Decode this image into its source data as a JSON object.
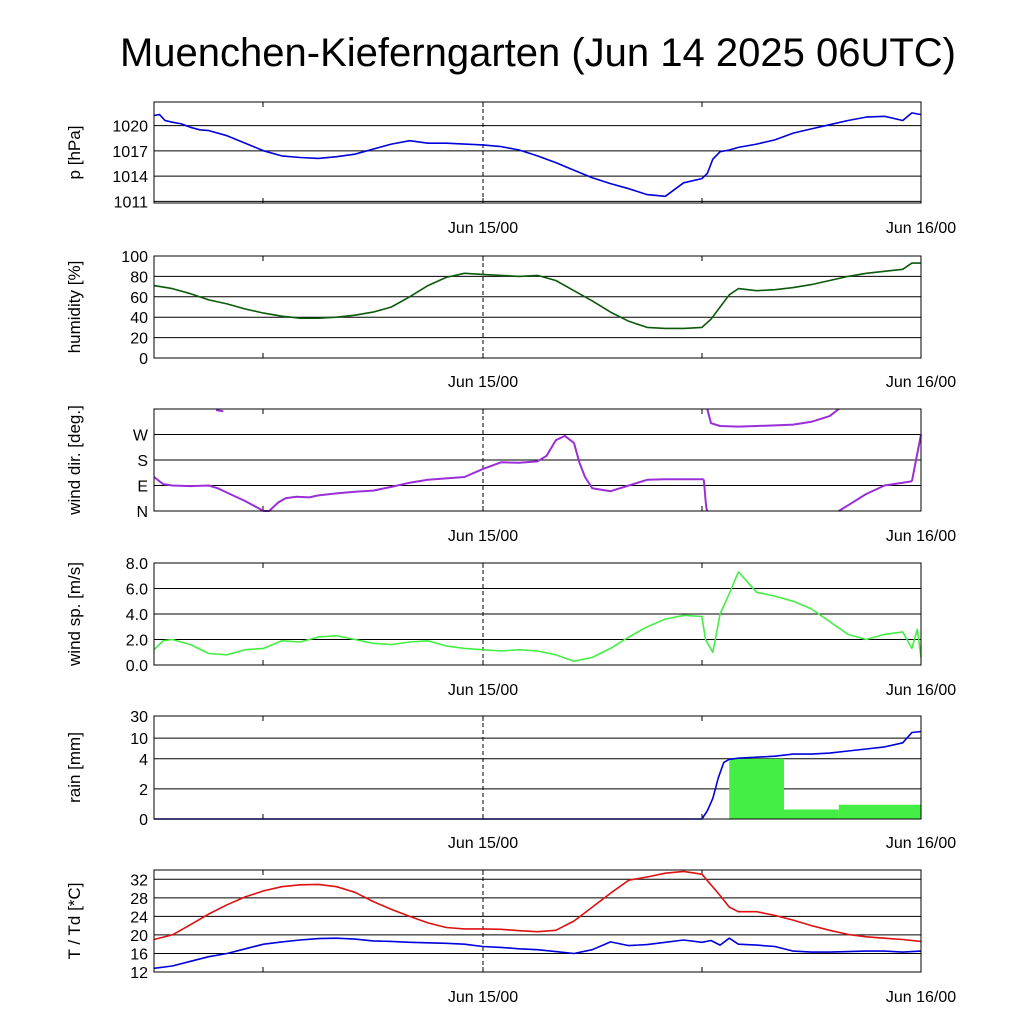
{
  "title": "Muenchen-Kieferngarten (Jun 14 2025 06UTC)",
  "x_tick_labels": [
    "Jun 15/00",
    "Jun 16/00"
  ],
  "colors": {
    "pressure": "#0000dd",
    "humidity": "#0a5a0a",
    "wind_dir": "#9a2fd8",
    "wind_speed": "#44ee44",
    "rain_bar": "#44ee44",
    "rain_cum": "#0000dd",
    "temperature": "#dd1111",
    "dewpoint": "#0000dd",
    "grid": "#000000"
  },
  "chart_data": [
    {
      "type": "line",
      "name": "pressure",
      "ylabel": "p [hPa]",
      "ylim": [
        1010.8,
        1022.8
      ],
      "yticks": [
        1011,
        1014,
        1017,
        1020
      ],
      "ytick_labels": [
        "1011",
        "1014",
        "1017",
        "1020"
      ],
      "x_range_hours": [
        0,
        42
      ],
      "series": [
        {
          "name": "",
          "color_key": "pressure",
          "x": [
            0,
            0.3,
            0.6,
            1,
            1.5,
            2,
            2.5,
            3,
            4,
            5,
            6,
            7,
            8,
            9,
            10,
            11,
            12,
            13,
            14,
            15,
            16,
            17,
            18,
            19,
            20,
            21,
            22,
            23,
            24,
            25,
            26,
            27,
            28,
            29,
            30,
            30.3,
            30.6,
            31,
            31.5,
            32,
            33,
            34,
            35,
            36,
            37,
            38,
            39,
            40,
            41,
            41.5,
            42
          ],
          "y": [
            1021.2,
            1021.3,
            1020.6,
            1020.4,
            1020.2,
            1019.8,
            1019.5,
            1019.4,
            1018.8,
            1017.9,
            1017.0,
            1016.4,
            1016.2,
            1016.1,
            1016.3,
            1016.6,
            1017.2,
            1017.8,
            1018.2,
            1017.9,
            1017.9,
            1017.8,
            1017.7,
            1017.5,
            1017.1,
            1016.4,
            1015.6,
            1014.7,
            1013.8,
            1013.1,
            1012.5,
            1011.8,
            1011.6,
            1013.2,
            1013.7,
            1014.3,
            1016.0,
            1016.9,
            1017.1,
            1017.4,
            1017.8,
            1018.3,
            1019.1,
            1019.6,
            1020.1,
            1020.6,
            1021.0,
            1021.1,
            1020.6,
            1021.5,
            1021.3
          ]
        }
      ]
    },
    {
      "type": "line",
      "name": "humidity",
      "ylabel": "humidity [%]",
      "ylim": [
        0,
        100
      ],
      "yticks": [
        0,
        20,
        40,
        60,
        80,
        100
      ],
      "ytick_labels": [
        "0",
        "20",
        "40",
        "60",
        "80",
        "100"
      ],
      "x_range_hours": [
        0,
        42
      ],
      "series": [
        {
          "name": "",
          "color_key": "humidity",
          "x": [
            0,
            1,
            2,
            3,
            4,
            5,
            6,
            7,
            8,
            9,
            10,
            11,
            12,
            13,
            14,
            15,
            16,
            17,
            18,
            19,
            20,
            21,
            22,
            23,
            24,
            25,
            26,
            27,
            28,
            29,
            30,
            30.5,
            31,
            31.5,
            32,
            33,
            34,
            35,
            36,
            37,
            38,
            39,
            40,
            41,
            41.5,
            42
          ],
          "y": [
            71,
            68,
            63,
            57,
            53,
            48,
            44,
            41,
            39,
            39,
            40,
            42,
            45,
            50,
            60,
            71,
            79,
            83,
            82,
            81,
            80,
            81,
            76,
            66,
            56,
            45,
            36,
            30,
            29,
            29,
            30,
            38,
            50,
            62,
            68,
            66,
            67,
            69,
            72,
            76,
            80,
            83,
            85,
            87,
            93,
            93
          ]
        }
      ]
    },
    {
      "type": "scatter",
      "name": "wind_direction",
      "ylabel": "wind dir. [deg.]",
      "ylim": [
        0,
        360
      ],
      "yticks": [
        0,
        90,
        180,
        270
      ],
      "ytick_labels": [
        "N",
        "E",
        "S",
        "W"
      ],
      "x_range_hours": [
        0,
        42
      ],
      "series": [
        {
          "name": "",
          "color_key": "wind_dir",
          "segments": [
            {
              "x": [
                3.4,
                3.8
              ],
              "y": [
                356,
                352
              ]
            },
            {
              "x": [
                0,
                0.5,
                1,
                2,
                3,
                3.5,
                4,
                5,
                6,
                6.3,
                6.8,
                7.2,
                7.8,
                8.5,
                9,
                10,
                11,
                12,
                13,
                14,
                15,
                16,
                17,
                18,
                19,
                20,
                21,
                21.5,
                22,
                22.5,
                23,
                23.3,
                23.6,
                24,
                25,
                26,
                27,
                28,
                29,
                30,
                30.1
              ],
              "y": [
                120,
                95,
                90,
                88,
                90,
                80,
                65,
                35,
                0,
                0,
                30,
                45,
                50,
                48,
                55,
                62,
                68,
                72,
                85,
                100,
                110,
                115,
                120,
                148,
                172,
                170,
                175,
                195,
                250,
                265,
                240,
                170,
                120,
                80,
                70,
                90,
                110,
                112,
                112,
                112,
                112
              ]
            },
            {
              "x": [
                30.1,
                30.15,
                30.2,
                30.25,
                30.3
              ],
              "y": [
                112,
                80,
                40,
                10,
                0
              ]
            },
            {
              "x": [
                30.3,
                30.5,
                31,
                32,
                33,
                34,
                35,
                36,
                37,
                37.5
              ],
              "y": [
                360,
                310,
                300,
                298,
                300,
                302,
                305,
                315,
                335,
                360
              ]
            },
            {
              "x": [
                37.5,
                38,
                39,
                40,
                41,
                41.5
              ],
              "y": [
                0,
                20,
                60,
                90,
                100,
                105
              ]
            },
            {
              "x": [
                41.5,
                41.7,
                42
              ],
              "y": [
                105,
                170,
                270
              ]
            }
          ]
        }
      ]
    },
    {
      "type": "line",
      "name": "wind_speed",
      "ylabel": "wind sp. [m/s]",
      "ylim": [
        0,
        8
      ],
      "yticks": [
        0,
        2,
        4,
        6,
        8
      ],
      "ytick_labels": [
        "0.0",
        "2.0",
        "4.0",
        "6.0",
        "8.0"
      ],
      "x_range_hours": [
        0,
        42
      ],
      "series": [
        {
          "name": "",
          "color_key": "wind_speed",
          "x": [
            0,
            0.5,
            1,
            2,
            3,
            4,
            5,
            6,
            7,
            8,
            9,
            10,
            11,
            12,
            13,
            14,
            15,
            16,
            17,
            18,
            19,
            20,
            21,
            22,
            23,
            24,
            25,
            26,
            27,
            28,
            29,
            30,
            30.2,
            30.6,
            31,
            31.5,
            32,
            33,
            34,
            35,
            36,
            37,
            38,
            39,
            40,
            41,
            41.5,
            41.8,
            42
          ],
          "y": [
            1.2,
            1.9,
            2.0,
            1.6,
            0.9,
            0.8,
            1.2,
            1.3,
            1.9,
            1.8,
            2.2,
            2.3,
            2.0,
            1.7,
            1.6,
            1.8,
            1.9,
            1.5,
            1.3,
            1.2,
            1.1,
            1.2,
            1.1,
            0.8,
            0.3,
            0.6,
            1.3,
            2.2,
            3.0,
            3.6,
            3.9,
            3.8,
            2.0,
            1.0,
            4.0,
            5.6,
            7.3,
            5.7,
            5.4,
            5.0,
            4.4,
            3.4,
            2.4,
            2.0,
            2.4,
            2.6,
            1.3,
            2.8,
            0.6
          ]
        }
      ]
    },
    {
      "type": "bar+line",
      "name": "rain",
      "ylabel": "rain [mm]",
      "yticks_pos": [
        0,
        0.2,
        0.4,
        0.6,
        0.8,
        1.0
      ],
      "ytick_labels": [
        "0",
        "2",
        "4",
        "10",
        "30"
      ],
      "ytick_positions": [
        0,
        0.2923,
        0.5846,
        0.7846,
        1.0
      ],
      "x_range_hours": [
        0,
        42
      ],
      "bars": {
        "color_key": "rain_bar",
        "x_start": [
          31.5,
          34.5,
          37.5
        ],
        "x_end": [
          34.5,
          37.5,
          42
        ],
        "height_fraction": [
          0.5846,
          0.0923,
          0.1385
        ]
      },
      "series": [
        {
          "name": "",
          "color_key": "rain_cum",
          "x": [
            0,
            30,
            30.3,
            30.6,
            30.9,
            31.2,
            31.5,
            32,
            33,
            34,
            35,
            36,
            37,
            38,
            39,
            40,
            41,
            41.5,
            42
          ],
          "y_fraction": [
            0,
            0,
            0.08,
            0.2,
            0.4,
            0.55,
            0.58,
            0.59,
            0.6,
            0.61,
            0.63,
            0.63,
            0.64,
            0.66,
            0.68,
            0.7,
            0.74,
            0.84,
            0.85
          ]
        }
      ]
    },
    {
      "type": "line",
      "name": "temperature",
      "ylabel": "T / Td [*C]",
      "ylim": [
        12,
        34
      ],
      "yticks": [
        12,
        16,
        20,
        24,
        28,
        32
      ],
      "ytick_labels": [
        "12",
        "16",
        "20",
        "24",
        "28",
        "32"
      ],
      "x_range_hours": [
        0,
        42
      ],
      "series": [
        {
          "name": "T",
          "color_key": "temperature",
          "x": [
            0,
            1,
            2,
            3,
            4,
            5,
            6,
            7,
            8,
            9,
            10,
            11,
            12,
            13,
            14,
            15,
            16,
            17,
            18,
            19,
            20,
            21,
            22,
            23,
            24,
            25,
            26,
            27,
            28,
            29,
            30,
            31,
            31.5,
            32,
            33,
            34,
            35,
            36,
            37,
            38,
            39,
            40,
            41,
            42
          ],
          "y": [
            19.0,
            20.0,
            22.2,
            24.5,
            26.5,
            28.2,
            29.5,
            30.4,
            30.8,
            30.9,
            30.4,
            29.2,
            27.2,
            25.5,
            24.0,
            22.6,
            21.6,
            21.3,
            21.3,
            21.2,
            20.9,
            20.7,
            21.0,
            23.0,
            26.0,
            29.0,
            31.8,
            32.5,
            33.3,
            33.7,
            33.1,
            28.5,
            26.0,
            25.0,
            25.0,
            24.2,
            23.2,
            22.0,
            21.0,
            20.1,
            19.6,
            19.3,
            19.0,
            18.6
          ]
        },
        {
          "name": "Td",
          "color_key": "dewpoint",
          "x": [
            0,
            1,
            2,
            3,
            4,
            5,
            6,
            7,
            8,
            9,
            10,
            11,
            12,
            13,
            14,
            15,
            16,
            17,
            18,
            19,
            20,
            21,
            22,
            23,
            24,
            25,
            26,
            27,
            28,
            29,
            30,
            30.5,
            31,
            31.5,
            32,
            33,
            34,
            35,
            36,
            37,
            38,
            39,
            40,
            41,
            42
          ],
          "y": [
            12.8,
            13.3,
            14.3,
            15.3,
            16.0,
            17.0,
            18.0,
            18.5,
            18.9,
            19.2,
            19.3,
            19.1,
            18.7,
            18.6,
            18.4,
            18.3,
            18.2,
            18.0,
            17.5,
            17.3,
            17.0,
            16.8,
            16.4,
            16.0,
            16.8,
            18.5,
            17.7,
            17.9,
            18.4,
            18.9,
            18.4,
            18.8,
            17.8,
            19.3,
            18.0,
            17.8,
            17.5,
            16.5,
            16.3,
            16.3,
            16.4,
            16.5,
            16.5,
            16.3,
            16.5
          ]
        }
      ]
    }
  ]
}
